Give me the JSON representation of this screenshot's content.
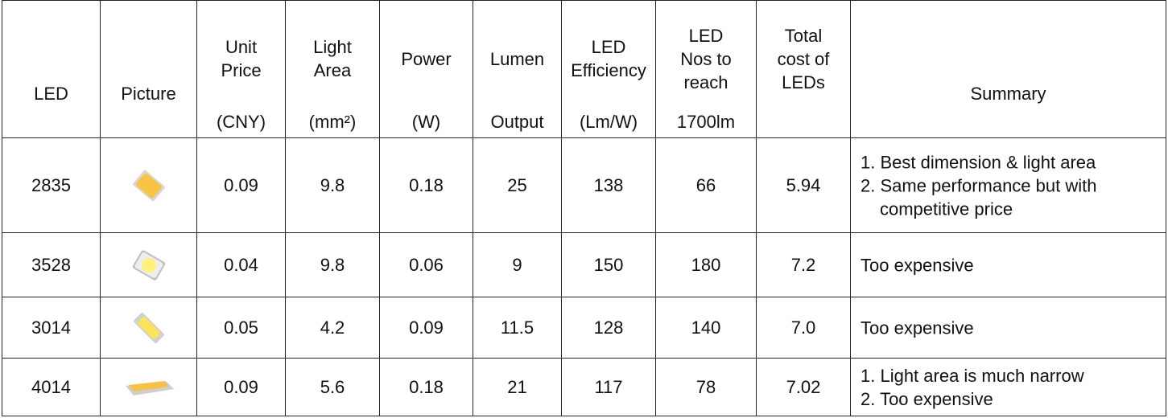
{
  "table": {
    "header": [
      {
        "lines": [
          "LED"
        ]
      },
      {
        "lines": [
          "Picture"
        ]
      },
      {
        "lines": [
          "Unit",
          "Price"
        ],
        "unit": "(CNY)"
      },
      {
        "lines": [
          "Light",
          "Area"
        ],
        "unit": "(mm²)"
      },
      {
        "lines": [
          "Power"
        ],
        "unit": "(W)"
      },
      {
        "lines": [
          "Lumen"
        ],
        "unit": "Output"
      },
      {
        "lines": [
          "LED",
          "Efficiency"
        ],
        "unit": "(Lm/W)"
      },
      {
        "lines": [
          "LED",
          "Nos to",
          "reach"
        ],
        "unit": "1700lm"
      },
      {
        "lines": [
          "Total",
          "cost of",
          "LEDs"
        ]
      },
      {
        "lines": [
          "Summary"
        ]
      }
    ],
    "rows": [
      {
        "cells": [
          "2835",
          "0.09",
          "9.8",
          "0.18",
          "25",
          "138",
          "66",
          "5.94"
        ],
        "summary": [
          "1. Best dimension & light area",
          "2. Same performance but with competitive price"
        ]
      },
      {
        "cells": [
          "3528",
          "0.04",
          "9.8",
          "0.06",
          "9",
          "150",
          "180",
          "7.2"
        ],
        "summary": [
          "Too expensive"
        ]
      },
      {
        "cells": [
          "3014",
          "0.05",
          "4.2",
          "0.09",
          "11.5",
          "128",
          "140",
          "7.0"
        ],
        "summary": [
          "Too expensive"
        ]
      },
      {
        "cells": [
          "4014",
          "0.09",
          "5.6",
          "0.18",
          "21",
          "117",
          "78",
          "7.02"
        ],
        "summary": [
          "1. Light area is much narrow",
          "2. Too expensive"
        ]
      }
    ]
  }
}
